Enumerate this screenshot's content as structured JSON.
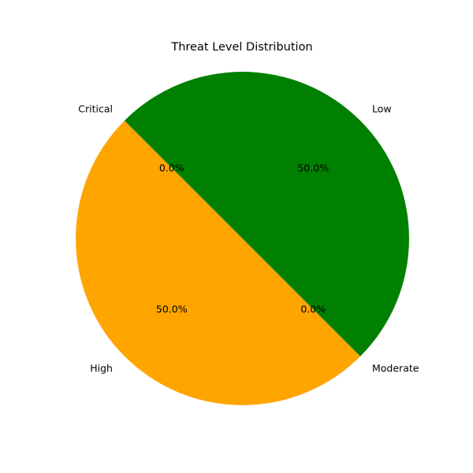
{
  "chart_data": {
    "type": "pie",
    "title": "Threat Level Distribution",
    "labels": [
      "Critical",
      "High",
      "Moderate",
      "Low"
    ],
    "values": [
      0,
      50,
      0,
      50
    ],
    "percent_labels": [
      "0.0%",
      "50.0%",
      "0.0%",
      "50.0%"
    ],
    "colors": [
      "#ff0000",
      "#ffa500",
      "#ffff00",
      "#008000"
    ],
    "start_angle_deg": 135,
    "direction": "counterclockwise",
    "legend": "none"
  }
}
